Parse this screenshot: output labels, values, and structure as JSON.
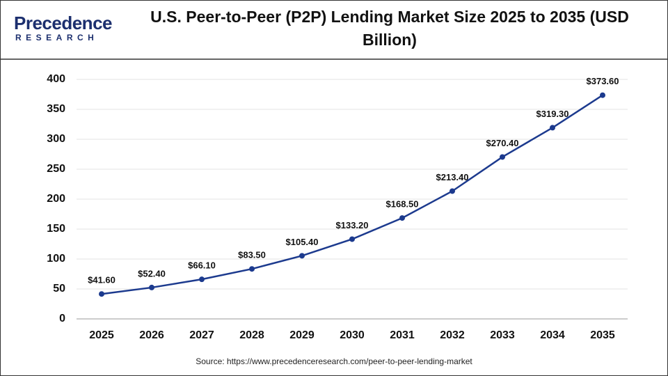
{
  "logo": {
    "name": "Precedence",
    "tagline": "RESEARCH"
  },
  "chart_data": {
    "type": "line",
    "title": "U.S. Peer-to-Peer (P2P) Lending Market Size 2025 to 2035 (USD Billion)",
    "categories": [
      "2025",
      "2026",
      "2027",
      "2028",
      "2029",
      "2030",
      "2031",
      "2032",
      "2033",
      "2034",
      "2035"
    ],
    "values": [
      41.6,
      52.4,
      66.1,
      83.5,
      105.4,
      133.2,
      168.5,
      213.4,
      270.4,
      319.3,
      373.6
    ],
    "value_labels": [
      "$41.60",
      "$52.40",
      "$66.10",
      "$83.50",
      "$105.40",
      "$133.20",
      "$168.50",
      "$213.40",
      "$270.40",
      "$319.30",
      "$373.60"
    ],
    "color": "#1c3a8e",
    "ylim": [
      0,
      400
    ],
    "yticks": [
      0,
      50,
      100,
      150,
      200,
      250,
      300,
      350,
      400
    ],
    "grid": true,
    "source": "Source: https://www.precedenceresearch.com/peer-to-peer-lending-market"
  }
}
